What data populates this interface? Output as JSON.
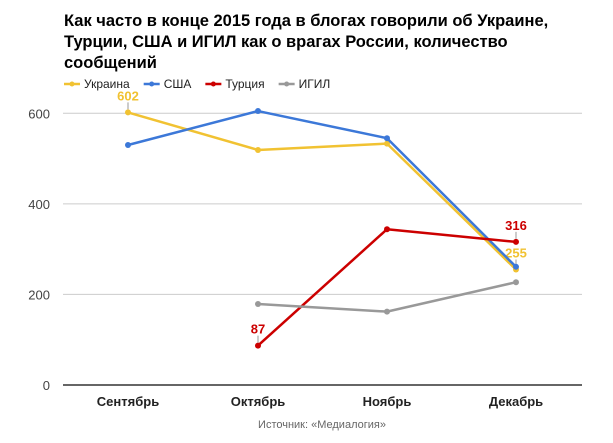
{
  "chart_data": {
    "type": "line",
    "title": "Как часто в конце 2015 года в блогах говорили об Украине, Турции, США и ИГИЛ как о врагах России, количество сообщений",
    "categories": [
      "Сентябрь",
      "Октябрь",
      "Ноябрь",
      "Декабрь"
    ],
    "ylim": [
      0,
      600
    ],
    "yticks": [
      0,
      200,
      400,
      600
    ],
    "grid": true,
    "legend": "top-left",
    "series": [
      {
        "name": "Украина",
        "color": "#f1c232",
        "values": [
          602,
          519,
          533,
          255
        ],
        "labels": [
          "602",
          null,
          null,
          "255"
        ]
      },
      {
        "name": "США",
        "color": "#3c78d8",
        "values": [
          530,
          605,
          545,
          261
        ],
        "labels": [
          null,
          null,
          null,
          null
        ]
      },
      {
        "name": "Турция",
        "color": "#cc0000",
        "values": [
          null,
          87,
          344,
          316
        ],
        "labels": [
          null,
          "87",
          null,
          "316"
        ]
      },
      {
        "name": "ИГИЛ",
        "color": "#999999",
        "values": [
          null,
          179,
          162,
          227
        ],
        "labels": [
          null,
          null,
          null,
          null
        ]
      }
    ],
    "source": "Источник: «Медиалогия»"
  }
}
